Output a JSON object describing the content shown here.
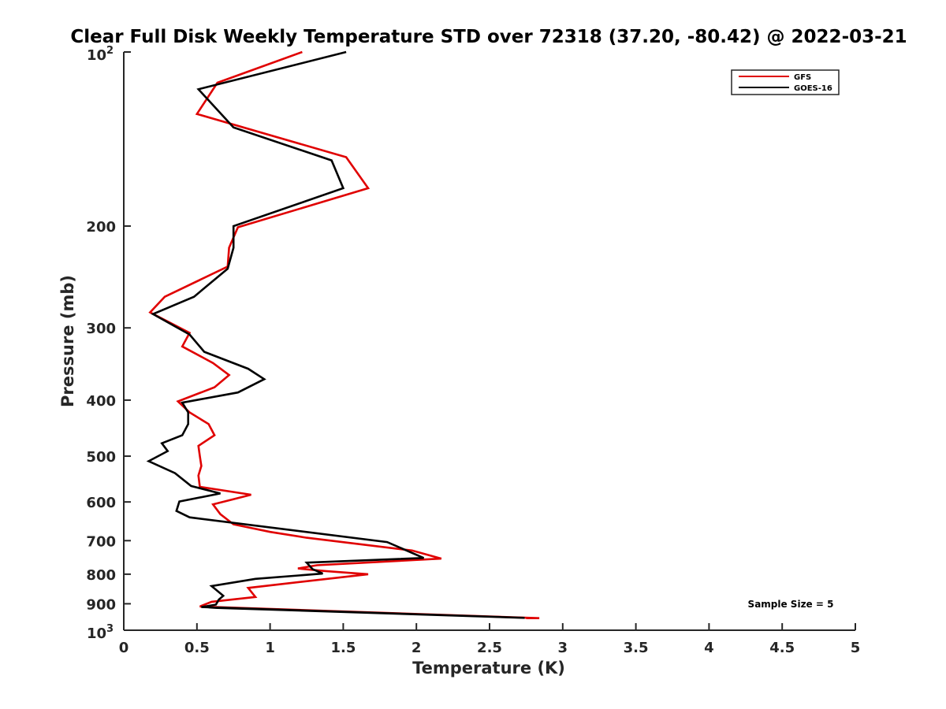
{
  "chart_data": {
    "type": "line",
    "title": "Clear Full Disk Weekly Temperature STD over 72318 (37.20, -80.42) @ 2022-03-21",
    "xlabel": "Temperature (K)",
    "ylabel": "Pressure (mb)",
    "xlim": [
      0,
      5
    ],
    "ylim": [
      100,
      1000
    ],
    "y_scale": "log",
    "y_reversed": true,
    "grid": false,
    "legend_position": "top-right",
    "x_ticks": [
      0,
      0.5,
      1,
      1.5,
      2,
      2.5,
      3,
      3.5,
      4,
      4.5,
      5
    ],
    "x_tick_labels": [
      "0",
      "0.5",
      "1",
      "1.5",
      "2",
      "2.5",
      "3",
      "3.5",
      "4",
      "4.5",
      "5"
    ],
    "y_ticks": [
      200,
      300,
      400,
      500,
      600,
      700,
      800,
      900
    ],
    "y_tick_labels": [
      "200",
      "300",
      "400",
      "500",
      "600",
      "700",
      "800",
      "900"
    ],
    "y_end_labels": {
      "top_base": "10",
      "top_exp": "2",
      "bottom_base": "10",
      "bottom_exp": "3"
    },
    "annotation": "Sample Size = 5",
    "series": [
      {
        "name": "GFS",
        "color": "#e00000",
        "points": [
          [
            1.22,
            100
          ],
          [
            0.64,
            113
          ],
          [
            0.5,
            128
          ],
          [
            1.52,
            152
          ],
          [
            1.67,
            172
          ],
          [
            0.78,
            201
          ],
          [
            0.72,
            218
          ],
          [
            0.71,
            235
          ],
          [
            0.28,
            265
          ],
          [
            0.18,
            282
          ],
          [
            0.45,
            306
          ],
          [
            0.4,
            323
          ],
          [
            0.61,
            345
          ],
          [
            0.72,
            362
          ],
          [
            0.62,
            380
          ],
          [
            0.37,
            402
          ],
          [
            0.45,
            420
          ],
          [
            0.58,
            440
          ],
          [
            0.62,
            460
          ],
          [
            0.51,
            480
          ],
          [
            0.52,
            500
          ],
          [
            0.53,
            520
          ],
          [
            0.51,
            540
          ],
          [
            0.52,
            565
          ],
          [
            0.87,
            583
          ],
          [
            0.61,
            606
          ],
          [
            0.66,
            630
          ],
          [
            0.75,
            656
          ],
          [
            1.0,
            676
          ],
          [
            1.25,
            692
          ],
          [
            1.97,
            728
          ],
          [
            2.17,
            752
          ],
          [
            1.32,
            772
          ],
          [
            1.19,
            782
          ],
          [
            1.38,
            790
          ],
          [
            1.67,
            800
          ],
          [
            0.85,
            845
          ],
          [
            0.9,
            876
          ],
          [
            0.6,
            893
          ],
          [
            0.52,
            910
          ],
          [
            2.84,
            953
          ],
          [
            2.75,
            953
          ]
        ]
      },
      {
        "name": "GOES-16",
        "color": "#000000",
        "points": [
          [
            1.52,
            100
          ],
          [
            0.51,
            116
          ],
          [
            0.75,
            135
          ],
          [
            1.42,
            154
          ],
          [
            1.5,
            172
          ],
          [
            0.75,
            200
          ],
          [
            0.75,
            218
          ],
          [
            0.71,
            237
          ],
          [
            0.48,
            265
          ],
          [
            0.2,
            284
          ],
          [
            0.45,
            308
          ],
          [
            0.55,
            330
          ],
          [
            0.85,
            353
          ],
          [
            0.96,
            368
          ],
          [
            0.78,
            388
          ],
          [
            0.4,
            404
          ],
          [
            0.44,
            420
          ],
          [
            0.44,
            440
          ],
          [
            0.4,
            460
          ],
          [
            0.26,
            475
          ],
          [
            0.3,
            490
          ],
          [
            0.17,
            510
          ],
          [
            0.35,
            535
          ],
          [
            0.46,
            563
          ],
          [
            0.66,
            580
          ],
          [
            0.38,
            599
          ],
          [
            0.36,
            622
          ],
          [
            0.45,
            638
          ],
          [
            1.8,
            704
          ],
          [
            2.05,
            750
          ],
          [
            1.25,
            764
          ],
          [
            1.29,
            784
          ],
          [
            1.36,
            798
          ],
          [
            0.9,
            815
          ],
          [
            0.6,
            839
          ],
          [
            0.68,
            872
          ],
          [
            0.65,
            885
          ],
          [
            0.63,
            903
          ],
          [
            0.53,
            912
          ],
          [
            2.74,
            952
          ],
          [
            0.58,
            914
          ]
        ]
      }
    ]
  }
}
